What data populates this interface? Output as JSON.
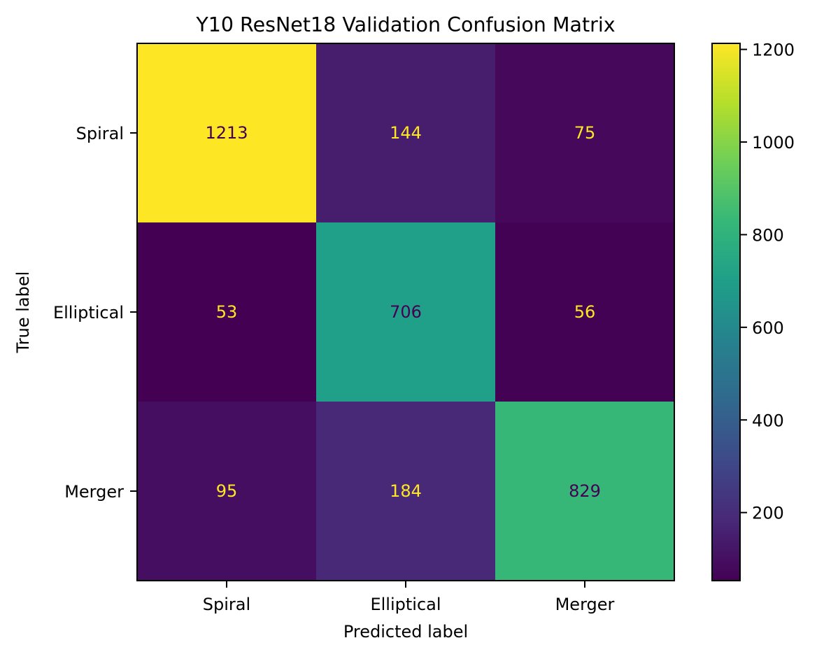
{
  "chart_data": {
    "type": "heatmap",
    "title": "Y10 ResNet18 Validation Confusion Matrix",
    "xlabel": "Predicted label",
    "ylabel": "True label",
    "x_categories": [
      "Spiral",
      "Elliptical",
      "Merger"
    ],
    "y_categories": [
      "Spiral",
      "Elliptical",
      "Merger"
    ],
    "values": [
      [
        1213,
        144,
        75
      ],
      [
        53,
        706,
        56
      ],
      [
        95,
        184,
        829
      ]
    ],
    "colormap": "viridis",
    "colorbar": {
      "range": [
        53,
        1213
      ],
      "ticks": [
        200,
        400,
        600,
        800,
        1000,
        1200
      ],
      "tick_labels": [
        "200",
        "400",
        "600",
        "800",
        "1000",
        "1200"
      ]
    },
    "cell_text_colors": {
      "on_dark": "#fde725",
      "on_light": "#440154"
    }
  }
}
